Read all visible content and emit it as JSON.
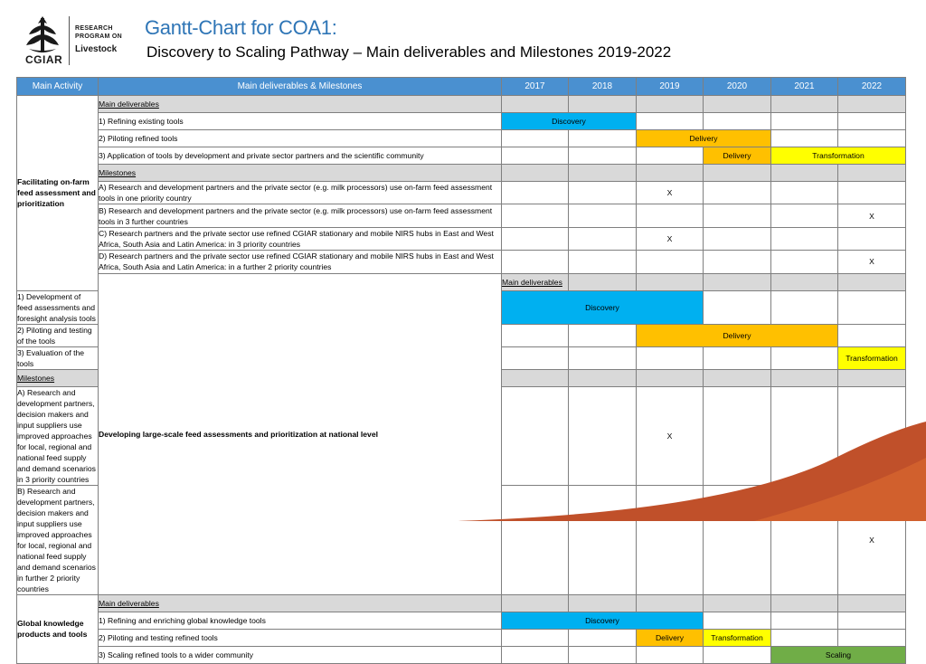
{
  "header": {
    "logo_line1": "RESEARCH",
    "logo_line2": "PROGRAM ON",
    "logo_line3": "Livestock",
    "logo_org": "CGIAR",
    "title": "Gantt-Chart for COA1:",
    "subtitle": "Discovery to Scaling Pathway – Main deliverables and Milestones 2019-2022"
  },
  "table": {
    "col_activity": "Main Activity",
    "col_deliverables": "Main deliverables & Milestones",
    "years": [
      "2017",
      "2018",
      "2019",
      "2020",
      "2021",
      "2022"
    ]
  },
  "activities": [
    {
      "name": "Facilitating on-farm feed assessment and prioritization",
      "deliverables_label": "Main deliverables",
      "deliverables": [
        "1) Refining existing tools",
        "2) Piloting refined tools",
        "3) Application of tools by development and private sector partners and the scientific community"
      ],
      "milestones_label": "Milestones",
      "milestones": [
        "A) Research and development partners and the private sector (e.g. milk processors) use on-farm feed assessment tools in one priority country",
        "B) Research and development partners and the private sector (e.g. milk processors) use on-farm feed assessment tools in 3 further countries",
        "C) Research partners and the private sector use refined CGIAR stationary and mobile NIRS hubs in East and West Africa, South Asia and Latin America: in 3 priority countries",
        "D) Research partners and the private sector use refined CGIAR stationary and mobile NIRS hubs in East and West Africa, South Asia and Latin America: in a further 2 priority countries"
      ]
    },
    {
      "name": "Developing large-scale feed assessments and prioritization at national level",
      "deliverables_label": "Main deliverables",
      "deliverables": [
        "1) Development of feed assessments and foresight analysis tools",
        "2) Piloting and testing of the tools",
        "3) Evaluation of the tools"
      ],
      "milestones_label": "Milestones",
      "milestones": [
        "A) Research and development partners, decision makers and input suppliers use improved approaches for local, regional and national feed supply and demand scenarios in 3 priority countries",
        "B) Research and development partners, decision makers and input suppliers use improved approaches for local, regional and national feed supply and demand scenarios in further 2 priority countries"
      ]
    },
    {
      "name": "Global knowledge products and tools",
      "deliverables_label": "Main deliverables",
      "deliverables": [
        "1) Refining and enriching global knowledge tools",
        "2) Piloting and testing refined tools",
        "3) Scaling refined tools to a wider community"
      ]
    }
  ],
  "bars": {
    "discovery": "Discovery",
    "delivery": "Delivery",
    "transformation": "Transformation",
    "scaling": "Scaling",
    "x": "X"
  },
  "colors": {
    "header_blue": "#4a90d0",
    "discovery": "#00b0f0",
    "delivery": "#ffc000",
    "transformation": "#ffff00",
    "scaling": "#70ad47",
    "title_blue": "#2e75b6",
    "swoosh": "#c0502a"
  },
  "icons": [
    "cgiar-wheat-logo-icon"
  ]
}
